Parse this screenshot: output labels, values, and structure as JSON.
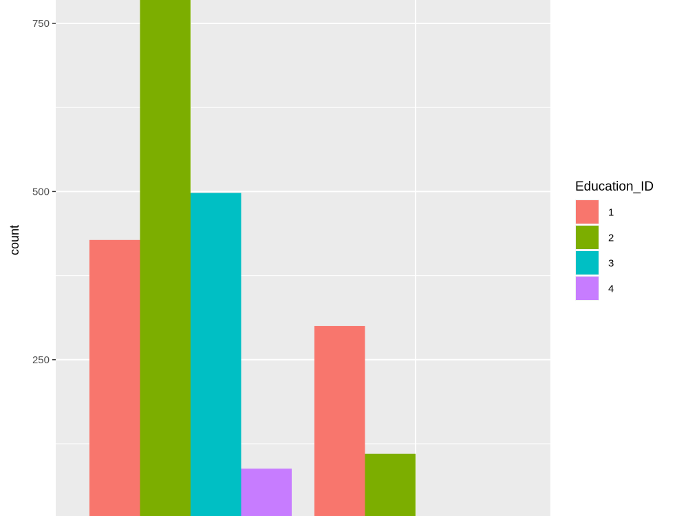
{
  "chart_data": {
    "type": "bar",
    "title": "",
    "xlabel": "",
    "ylabel": "count",
    "ylim": [
      0,
      785
    ],
    "y_ticks": [
      250,
      500,
      750
    ],
    "y_minor_ticks": [
      125,
      375,
      625
    ],
    "grid": true,
    "legend": {
      "title": "Education_ID",
      "placement": "right",
      "entries": [
        "1",
        "2",
        "3",
        "4"
      ]
    },
    "colors": [
      "#F8766D",
      "#7CAE00",
      "#00BFC4",
      "#C77CFF"
    ],
    "groups": [
      {
        "values": [
          428,
          800,
          498,
          88
        ]
      },
      {
        "values": [
          300,
          110
        ]
      }
    ],
    "panel_background": "#EBEBEB",
    "grid_color": "#FFFFFF"
  }
}
